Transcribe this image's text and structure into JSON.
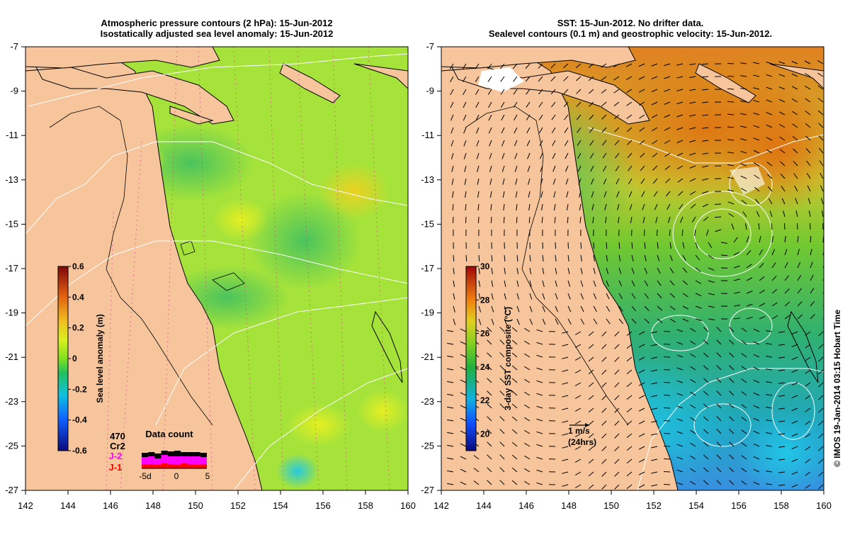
{
  "credit": "© IMOS 19-Jan-2014 03:15 Hobart Time",
  "colors": {
    "land": "#f7c59c",
    "sla_base": "#a6e33a",
    "sst_base": "#3fbf5a",
    "contour_white": "#ffffff",
    "coast": "#000000"
  },
  "chart_data": [
    {
      "type": "heatmap",
      "title_line1": "Atmospheric pressure contours (2 hPa): 15-Jun-2012",
      "title_line2": "Isostatically adjusted sea level anomaly: 15-Jun-2012",
      "xlim": [
        142,
        160
      ],
      "ylim": [
        -27,
        -7
      ],
      "x_ticks": [
        "142",
        "144",
        "146",
        "148",
        "150",
        "152",
        "154",
        "156",
        "158",
        "160"
      ],
      "y_ticks": [
        "-7",
        "-9",
        "-11",
        "-13",
        "-15",
        "-17",
        "-19",
        "-21",
        "-23",
        "-25",
        "-27"
      ],
      "colorbar": {
        "label": "Sea level anomaly (m)",
        "ticks": [
          "0.6",
          "0.4",
          "0.2",
          "0",
          "-0.2",
          "-0.4",
          "-0.6"
        ],
        "range": [
          -0.6,
          0.6
        ]
      },
      "data_count": {
        "title": "Data count",
        "satellites": [
          "470",
          "Cr2",
          "J-2",
          "J-1"
        ],
        "satellite_colors": [
          "#000000",
          "#000000",
          "#ff00ff",
          "#ff0000"
        ],
        "x_ticks": [
          "-5d",
          "0",
          "5"
        ]
      }
    },
    {
      "type": "heatmap",
      "title_line1": "SST: 15-Jun-2012. No drifter data.",
      "title_line2": "Sealevel contours (0.1 m) and geostrophic velocity: 15-Jun-2012.",
      "xlim": [
        142,
        160
      ],
      "ylim": [
        -27,
        -7
      ],
      "x_ticks": [
        "142",
        "144",
        "146",
        "148",
        "150",
        "152",
        "154",
        "156",
        "158",
        "160"
      ],
      "y_ticks": [
        "-7",
        "-9",
        "-11",
        "-13",
        "-15",
        "-17",
        "-19",
        "-21",
        "-23",
        "-25",
        "-27"
      ],
      "colorbar": {
        "label": "3-day SST composite (°C)",
        "ticks": [
          "30",
          "28",
          "26",
          "24",
          "22",
          "20"
        ],
        "range": [
          19,
          30
        ]
      },
      "velocity_scale": {
        "label": "1 m/s",
        "sublabel": "(24hrs)"
      }
    }
  ]
}
